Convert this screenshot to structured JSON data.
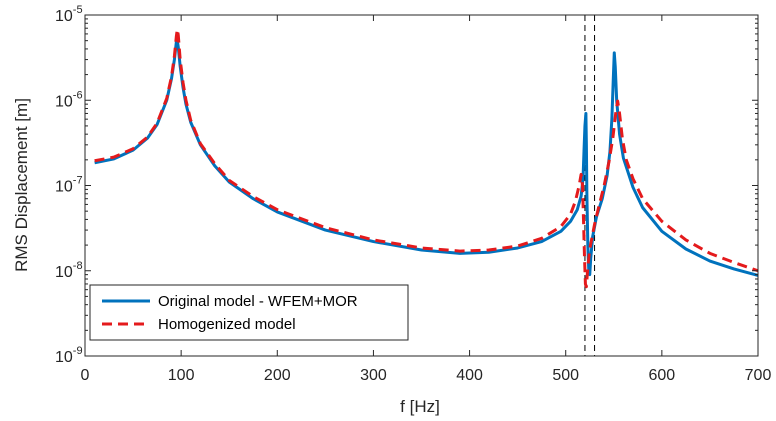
{
  "chart_data": {
    "type": "line",
    "xlabel": "f [Hz]",
    "ylabel": "RMS Displacement [m]",
    "xlim": [
      0,
      700
    ],
    "ylim": [
      1e-09,
      1e-05
    ],
    "yscale": "log",
    "grid": false,
    "legend_position": "bottom-left",
    "x_ticks": [
      0,
      100,
      200,
      300,
      400,
      500,
      600,
      700
    ],
    "y_ticks": [
      {
        "value": 1e-09,
        "base": "10",
        "exp": "-9"
      },
      {
        "value": 1e-08,
        "base": "10",
        "exp": "-8"
      },
      {
        "value": 1e-07,
        "base": "10",
        "exp": "-7"
      },
      {
        "value": 1e-06,
        "base": "10",
        "exp": "-6"
      },
      {
        "value": 1e-05,
        "base": "10",
        "exp": "-5"
      }
    ],
    "vlines": [
      520,
      530
    ],
    "series": [
      {
        "name": "Original model - WFEM+MOR",
        "color": "#0072BD",
        "style": "solid",
        "points": [
          [
            10,
            1.85e-07
          ],
          [
            30,
            2.05e-07
          ],
          [
            50,
            2.6e-07
          ],
          [
            65,
            3.6e-07
          ],
          [
            75,
            5.2e-07
          ],
          [
            85,
            1e-06
          ],
          [
            90,
            1.8e-06
          ],
          [
            93,
            3e-06
          ],
          [
            95,
            4.8e-06
          ],
          [
            96,
            5e-06
          ],
          [
            97,
            4.2e-06
          ],
          [
            99,
            2.5e-06
          ],
          [
            102,
            1.4e-06
          ],
          [
            105,
            9e-07
          ],
          [
            110,
            5.5e-07
          ],
          [
            120,
            3e-07
          ],
          [
            135,
            1.7e-07
          ],
          [
            150,
            1.1e-07
          ],
          [
            175,
            7e-08
          ],
          [
            200,
            4.9e-08
          ],
          [
            250,
            3e-08
          ],
          [
            300,
            2.2e-08
          ],
          [
            350,
            1.75e-08
          ],
          [
            390,
            1.6e-08
          ],
          [
            420,
            1.65e-08
          ],
          [
            450,
            1.85e-08
          ],
          [
            475,
            2.2e-08
          ],
          [
            495,
            2.9e-08
          ],
          [
            505,
            3.8e-08
          ],
          [
            512,
            5.2e-08
          ],
          [
            516,
            7.5e-08
          ],
          [
            518,
            1.2e-07
          ],
          [
            519,
            2.5e-07
          ],
          [
            520,
            5e-07
          ],
          [
            521,
            7e-07
          ],
          [
            521.5,
            3e-07
          ],
          [
            522,
            8e-08
          ],
          [
            523,
            2e-08
          ],
          [
            524,
            1e-08
          ],
          [
            525,
            9e-09
          ],
          [
            526,
            1.4e-08
          ],
          [
            528,
            2.5e-08
          ],
          [
            532,
            4.3e-08
          ],
          [
            538,
            7e-08
          ],
          [
            543,
            1.3e-07
          ],
          [
            546,
            2.5e-07
          ],
          [
            548,
            6e-07
          ],
          [
            549.5,
            1.8e-06
          ],
          [
            550.5,
            3.6e-06
          ],
          [
            551.5,
            2.5e-06
          ],
          [
            553,
            1e-06
          ],
          [
            556,
            4e-07
          ],
          [
            560,
            2.1e-07
          ],
          [
            570,
            9.5e-08
          ],
          [
            580,
            5.5e-08
          ],
          [
            600,
            2.9e-08
          ],
          [
            625,
            1.8e-08
          ],
          [
            650,
            1.3e-08
          ],
          [
            675,
            1.05e-08
          ],
          [
            700,
            8.8e-09
          ]
        ]
      },
      {
        "name": "Homogenized model",
        "color": "#E41A1C",
        "style": "dashed",
        "points": [
          [
            10,
            1.95e-07
          ],
          [
            30,
            2.15e-07
          ],
          [
            50,
            2.7e-07
          ],
          [
            65,
            3.7e-07
          ],
          [
            75,
            5.4e-07
          ],
          [
            85,
            1.05e-06
          ],
          [
            90,
            1.9e-06
          ],
          [
            93,
            3.3e-06
          ],
          [
            95,
            5.6e-06
          ],
          [
            96,
            6.8e-06
          ],
          [
            97,
            5.8e-06
          ],
          [
            99,
            3e-06
          ],
          [
            102,
            1.6e-06
          ],
          [
            105,
            1e-06
          ],
          [
            110,
            5.8e-07
          ],
          [
            120,
            3.1e-07
          ],
          [
            135,
            1.8e-07
          ],
          [
            150,
            1.15e-07
          ],
          [
            175,
            7.4e-08
          ],
          [
            200,
            5.2e-08
          ],
          [
            250,
            3.2e-08
          ],
          [
            300,
            2.3e-08
          ],
          [
            350,
            1.85e-08
          ],
          [
            390,
            1.7e-08
          ],
          [
            420,
            1.75e-08
          ],
          [
            450,
            1.95e-08
          ],
          [
            475,
            2.4e-08
          ],
          [
            495,
            3.3e-08
          ],
          [
            505,
            4.6e-08
          ],
          [
            510,
            6.5e-08
          ],
          [
            514,
            1e-07
          ],
          [
            516,
            1.35e-07
          ],
          [
            517.5,
            1e-07
          ],
          [
            518.5,
            4e-08
          ],
          [
            519.5,
            1.5e-08
          ],
          [
            520.5,
            7e-09
          ],
          [
            521.5,
            6.5e-09
          ],
          [
            523,
            1.1e-08
          ],
          [
            525,
            1.8e-08
          ],
          [
            530,
            3.5e-08
          ],
          [
            535,
            6e-08
          ],
          [
            540,
            1e-07
          ],
          [
            545,
            1.9e-07
          ],
          [
            549,
            3.6e-07
          ],
          [
            552,
            7e-07
          ],
          [
            554,
            9.8e-07
          ],
          [
            556,
            7e-07
          ],
          [
            559,
            3.5e-07
          ],
          [
            563,
            2e-07
          ],
          [
            570,
            1.2e-07
          ],
          [
            580,
            7e-08
          ],
          [
            600,
            3.8e-08
          ],
          [
            625,
            2.3e-08
          ],
          [
            650,
            1.6e-08
          ],
          [
            675,
            1.25e-08
          ],
          [
            700,
            1e-08
          ]
        ]
      }
    ]
  }
}
